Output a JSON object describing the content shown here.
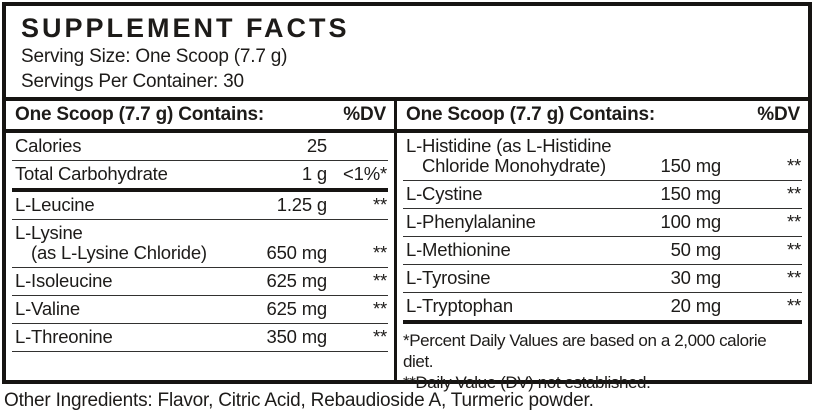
{
  "title": "SUPPLEMENT FACTS",
  "serving": {
    "size": "Serving Size: One Scoop (7.7 g)",
    "per_container": "Servings Per Container: 30"
  },
  "columns": [
    {
      "header": {
        "contains": "One Scoop (7.7 g) Contains:",
        "dv": "%DV"
      },
      "rows": [
        {
          "label": "Calories",
          "amount": "25",
          "dv": ""
        },
        {
          "label": "Total Carbohydrate",
          "amount": "1 g",
          "dv": "<1%*"
        },
        {
          "label": "L-Leucine",
          "amount": "1.25 g",
          "dv": "**"
        },
        {
          "label": "L-Lysine",
          "label2": "(as L-Lysine Chloride)",
          "amount": "650 mg",
          "dv": "**"
        },
        {
          "label": "L-Isoleucine",
          "amount": "625 mg",
          "dv": "**"
        },
        {
          "label": "L-Valine",
          "amount": "625 mg",
          "dv": "**"
        },
        {
          "label": "L-Threonine",
          "amount": "350 mg",
          "dv": "**"
        }
      ]
    },
    {
      "header": {
        "contains": "One Scoop (7.7 g) Contains:",
        "dv": "%DV"
      },
      "rows": [
        {
          "label": "L-Histidine (as L-Histidine",
          "label2": "Chloride Monohydrate)",
          "amount": "150 mg",
          "dv": "**"
        },
        {
          "label": "L-Cystine",
          "amount": "150 mg",
          "dv": "**"
        },
        {
          "label": "L-Phenylalanine",
          "amount": "100 mg",
          "dv": "**"
        },
        {
          "label": "L-Methionine",
          "amount": "50 mg",
          "dv": "**"
        },
        {
          "label": "L-Tyrosine",
          "amount": "30 mg",
          "dv": "**"
        },
        {
          "label": "L-Tryptophan",
          "amount": "20 mg",
          "dv": "**"
        }
      ],
      "footnotes": [
        "*Percent Daily Values are based on a 2,000 calorie diet.",
        "**Daily Value (DV) not established."
      ]
    }
  ],
  "other_ingredients": "Other Ingredients: Flavor, Citric Acid, Rebaudioside A, Turmeric powder.",
  "colors": {
    "ink": "#1d1b19",
    "background": "#ffffff"
  }
}
